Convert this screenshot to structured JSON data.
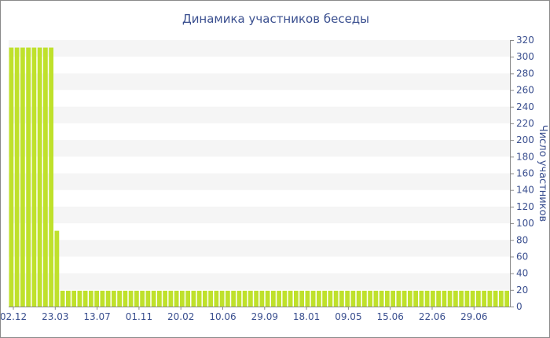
{
  "chart_data": {
    "type": "bar",
    "title": "Динамика участников беседы",
    "xlabel": "",
    "ylabel": "Число участников",
    "ylim": [
      0,
      320
    ],
    "y_ticks": [
      0,
      20,
      40,
      60,
      80,
      100,
      120,
      140,
      160,
      180,
      200,
      220,
      240,
      260,
      280,
      300,
      320
    ],
    "y_axis_side": "right",
    "grid": "alternating horizontal bands",
    "legend": "none",
    "x_tick_labels": [
      "02.12",
      "23.03",
      "13.07",
      "01.11",
      "20.02",
      "10.06",
      "29.09",
      "18.01",
      "09.05",
      "15.06",
      "22.06",
      "29.06"
    ],
    "values": [
      311,
      311,
      311,
      311,
      311,
      311,
      311,
      311,
      91,
      19,
      19,
      19,
      19,
      19,
      19,
      19,
      19,
      19,
      19,
      19,
      19,
      19,
      19,
      19,
      19,
      19,
      19,
      19,
      19,
      19,
      19,
      19,
      19,
      19,
      19,
      19,
      19,
      19,
      19,
      19,
      19,
      19,
      19,
      19,
      19,
      19,
      19,
      19,
      19,
      19,
      19,
      19,
      19,
      19,
      19,
      19,
      19,
      19,
      19,
      19,
      19,
      19,
      19,
      19,
      19,
      19,
      19,
      19,
      19,
      19,
      19,
      19,
      19,
      19,
      19,
      19,
      19,
      19,
      19,
      19,
      19,
      19,
      19,
      19,
      19,
      19,
      19,
      19
    ],
    "colors": {
      "bar": "#bfe12b",
      "band": "#f5f5f5",
      "text": "#3a4f8f",
      "axis": "#8a8a8a"
    }
  }
}
